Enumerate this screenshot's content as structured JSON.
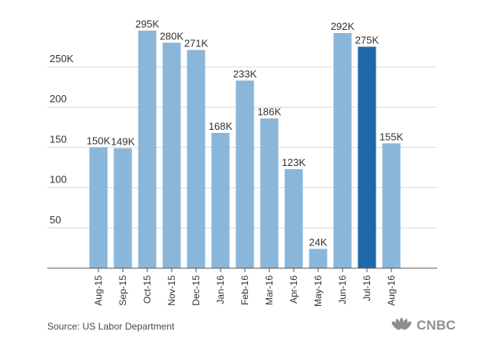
{
  "chart_data": {
    "type": "bar",
    "categories": [
      "Aug-15",
      "Sep-15",
      "Oct-15",
      "Nov-15",
      "Dec-15",
      "Jan-16",
      "Feb-16",
      "Mar-16",
      "Apr-16",
      "May-16",
      "Jun-16",
      "Jul-16",
      "Aug-16"
    ],
    "values": [
      150,
      149,
      295,
      280,
      271,
      168,
      233,
      186,
      123,
      24,
      292,
      275,
      155
    ],
    "labels": [
      "150K",
      "149K",
      "295K",
      "280K",
      "271K",
      "168K",
      "233K",
      "186K",
      "123K",
      "24K",
      "292K",
      "275K",
      "155K"
    ],
    "highlight_index": 11,
    "yticks": [
      50,
      100,
      150,
      200,
      250
    ],
    "ytick_labels": [
      "50",
      "100",
      "150",
      "200",
      "250K"
    ],
    "ylim": [
      0,
      300
    ],
    "grid": true,
    "colors": {
      "bar": "#8ab6da",
      "highlight": "#1f69aa",
      "grid": "#d9d9d9",
      "axis": "#555555",
      "text": "#333333"
    }
  },
  "footer": {
    "source": "Source: US Labor Department",
    "logo_text": "CNBC",
    "logo_icon": "peacock-icon"
  }
}
